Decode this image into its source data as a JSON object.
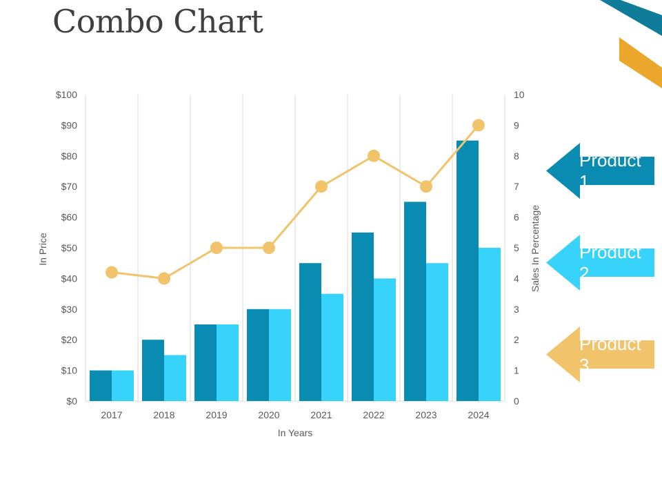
{
  "slide": {
    "title": "Combo Chart"
  },
  "colors": {
    "accent_teal": "#0F7D99",
    "accent_gold": "#EBA72C",
    "product1": "#0A8CB2",
    "product2": "#38D3FA",
    "product3": "#F1C36A",
    "grid": "#D9D9D9",
    "text": "#595959"
  },
  "chart_data": {
    "type": "combo",
    "title": "",
    "xlabel": "In Years",
    "ylabel": "In Price",
    "y2label": "Sales In Percentage",
    "categories": [
      "2017",
      "2018",
      "2019",
      "2020",
      "2021",
      "2022",
      "2023",
      "2024"
    ],
    "ylim": [
      0,
      100
    ],
    "y_ticks": [
      "$0",
      "$10",
      "$20",
      "$30",
      "$40",
      "$50",
      "$60",
      "$70",
      "$80",
      "$90",
      "$100"
    ],
    "y2lim": [
      0,
      10
    ],
    "y2_ticks": [
      "0",
      "1",
      "2",
      "3",
      "4",
      "5",
      "6",
      "7",
      "8",
      "9",
      "10"
    ],
    "series": [
      {
        "name": "Product 1",
        "type": "bar",
        "axis": "left",
        "values": [
          10,
          20,
          25,
          30,
          45,
          55,
          65,
          85
        ]
      },
      {
        "name": "Product 2",
        "type": "bar",
        "axis": "left",
        "values": [
          10,
          15,
          25,
          30,
          35,
          40,
          45,
          50
        ]
      },
      {
        "name": "Product 3",
        "type": "line",
        "axis": "right",
        "values": [
          4.2,
          4,
          5,
          5,
          7,
          8,
          7,
          9
        ]
      }
    ]
  },
  "legend": {
    "product1": "Product 1",
    "product2": "Product 2",
    "product3": "Product 3"
  }
}
